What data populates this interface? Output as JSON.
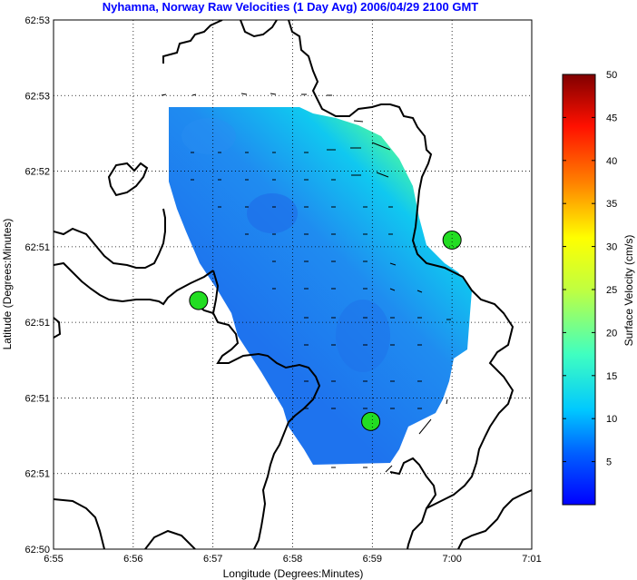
{
  "chart_data": {
    "type": "heatmap",
    "title": "Nyhamna, Norway Raw Velocities (1 Day Avg) 2006/04/29 2100 GMT",
    "xlabel": "Longitude (Degrees:Minutes)",
    "ylabel": "Latitude (Degrees:Minutes)",
    "x_ticks": [
      "6:55",
      "6:56",
      "6:57",
      "6:58",
      "6:59",
      "7:00",
      "7:01"
    ],
    "y_ticks": [
      "62:50",
      "62:51",
      "62:51",
      "62:51",
      "62:51",
      "62:52",
      "62:53",
      "62:53"
    ],
    "grid": true,
    "colorbar": {
      "label": "Surface Velocity (cm/s)",
      "range": [
        0,
        50
      ],
      "ticks": [
        "5",
        "10",
        "15",
        "20",
        "25",
        "30",
        "35",
        "40",
        "45",
        "50"
      ]
    },
    "colors": {
      "title": "#0000ff",
      "field_low": "#1e78f0",
      "field_high": "#c8f050",
      "station": "#22dd22",
      "coast": "#000000"
    },
    "stations": [
      {
        "lon": 6.947,
        "lat": 62.858
      },
      {
        "lon": 6.983,
        "lat": 62.846
      },
      {
        "lon": 7.0,
        "lat": 62.864
      }
    ]
  }
}
